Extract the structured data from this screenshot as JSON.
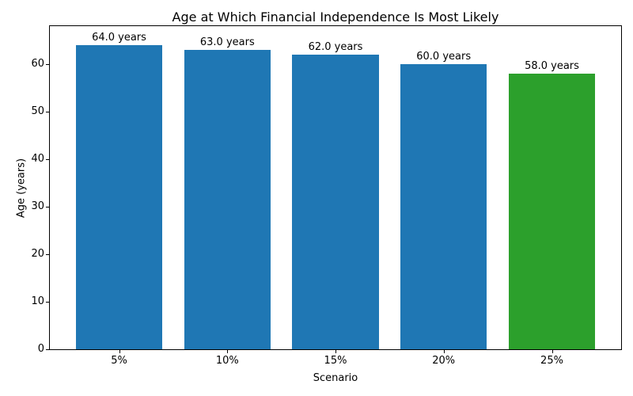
{
  "chart_data": {
    "type": "bar",
    "title": "Age at Which Financial Independence Is Most Likely",
    "xlabel": "Scenario",
    "ylabel": "Age (years)",
    "categories": [
      "5%",
      "10%",
      "15%",
      "20%",
      "25%"
    ],
    "values": [
      64.0,
      63.0,
      62.0,
      60.0,
      58.0
    ],
    "bar_labels": [
      "64.0 years",
      "63.0 years",
      "62.0 years",
      "60.0 years",
      "58.0 years"
    ],
    "bar_colors": [
      "#1f77b4",
      "#1f77b4",
      "#1f77b4",
      "#1f77b4",
      "#2ca02c"
    ],
    "default_bar_color": "#1f77b4",
    "highlight_color": "#2ca02c",
    "ylim": [
      0,
      68
    ],
    "yticks": [
      0,
      10,
      20,
      30,
      40,
      50,
      60
    ],
    "bar_width_fraction": 0.8,
    "grid": false,
    "legend_position": "none",
    "axis_color": "#000000",
    "background_color": "#ffffff"
  }
}
